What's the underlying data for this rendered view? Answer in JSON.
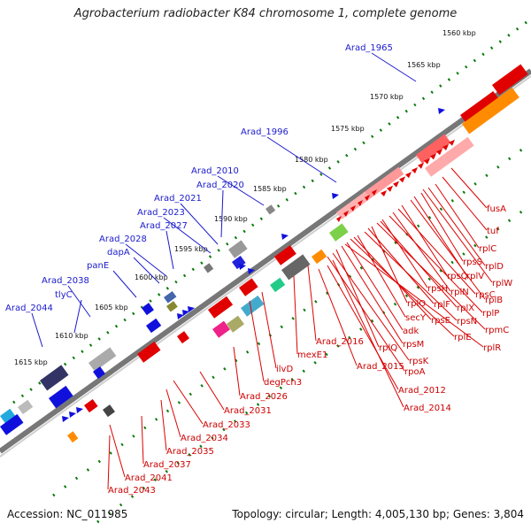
{
  "title": "Agrobacterium radiobacter K84 chromosome 1, complete genome",
  "accession": "Accession: NC_011985",
  "summary": "Topology: circular; Length: 4,005,130 bp; Genes: 3,804",
  "ticks": [
    "1560 kbp",
    "1565 kbp",
    "1570 kbp",
    "1575 kbp",
    "1580 kbp",
    "1585 kbp",
    "1590 kbp",
    "1595 kbp",
    "1600 kbp",
    "1605 kbp",
    "1610 kbp",
    "1615 kbp"
  ],
  "blue_labels": [
    "Arad_1965",
    "Arad_1996",
    "Arad_2010",
    "Arad_2020",
    "Arad_2021",
    "Arad_2023",
    "Arad_2027",
    "Arad_2028",
    "dapA",
    "panE",
    "Arad_2038",
    "tlyC",
    "Arad_2044"
  ],
  "red_labels": [
    "fusA",
    "tuf",
    "rplC",
    "rplD",
    "rpsS",
    "rplW",
    "rplV",
    "rplB",
    "rpsQ",
    "rpsC",
    "rplN",
    "rplP",
    "rpsH",
    "rplX",
    "rpmC",
    "rplO",
    "rplF",
    "rpsN",
    "secY",
    "rpsE",
    "rplE",
    "adk",
    "rplR",
    "rpsM",
    "rplQ",
    "rpsK",
    "rpoA",
    "Arad_2016",
    "mexE1",
    "Arad_2015",
    "Arad_2012",
    "Arad_2014",
    "ilvD",
    "degPch3",
    "Arad_2026",
    "Arad_2031",
    "Arad_2033",
    "Arad_2034",
    "Arad_2035",
    "Arad_2037",
    "Arad_2041",
    "Arad_2043"
  ],
  "colors": {
    "blue": "#1010cc",
    "red": "#dd0000",
    "green_dots": "#0a7a0a",
    "backbone": "#888888"
  }
}
